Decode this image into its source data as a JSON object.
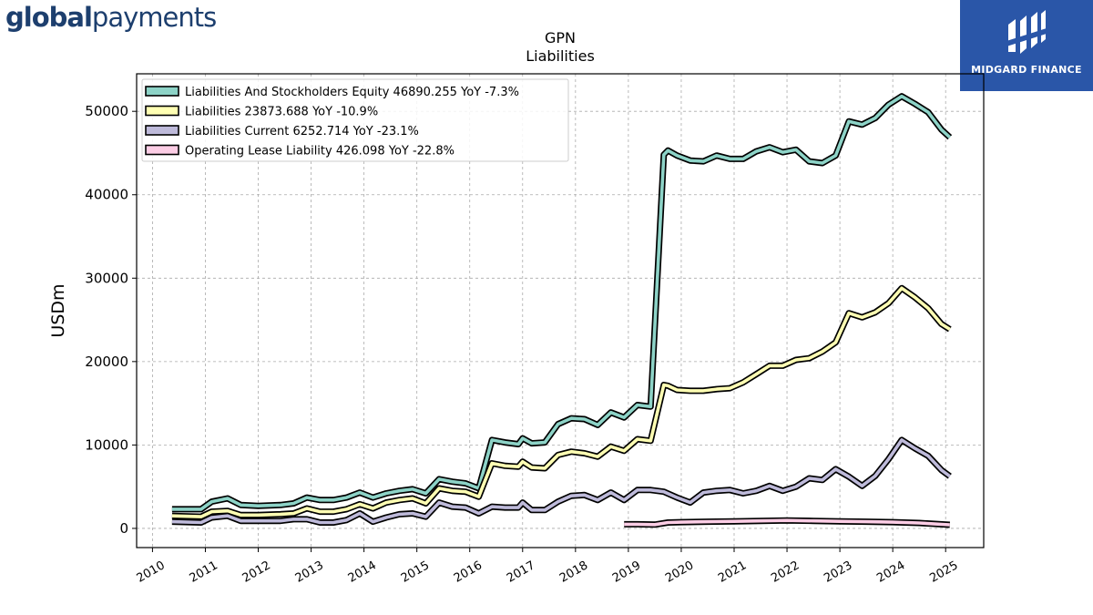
{
  "branding": {
    "logo_bold": "global",
    "logo_light": "payments",
    "watermark_text": "MIDGARD FINANCE"
  },
  "chart_data": {
    "type": "line",
    "title": "GPN",
    "subtitle": "Liabilities",
    "xlabel": "",
    "ylabel": "USDm",
    "xlim": [
      2009.7,
      2025.72
    ],
    "ylim": [
      -2300,
      54500
    ],
    "yticks": [
      0,
      10000,
      20000,
      30000,
      40000,
      50000
    ],
    "xticks": [
      "2010",
      "2011",
      "2012",
      "2013",
      "2014",
      "2015",
      "2016",
      "2017",
      "2018",
      "2019",
      "2020",
      "2021",
      "2022",
      "2023",
      "2024",
      "2025"
    ],
    "grid": true,
    "legend_position": "top-left",
    "series": [
      {
        "name": "Liabilities And Stockholders Equity",
        "legend": "Liabilities And Stockholders Equity  46890.255 YoY -7.3%",
        "color": "#8dd3c7",
        "x": [
          2010.37,
          2010.92,
          2011.12,
          2011.42,
          2011.67,
          2012.0,
          2012.42,
          2012.67,
          2012.92,
          2013.17,
          2013.42,
          2013.67,
          2013.92,
          2014.17,
          2014.42,
          2014.67,
          2014.92,
          2015.17,
          2015.42,
          2015.67,
          2015.92,
          2016.17,
          2016.42,
          2016.67,
          2016.92,
          2017.0,
          2017.17,
          2017.42,
          2017.67,
          2017.92,
          2018.17,
          2018.42,
          2018.67,
          2018.92,
          2019.17,
          2019.42,
          2019.67,
          2019.75,
          2019.92,
          2020.17,
          2020.42,
          2020.67,
          2020.92,
          2021.17,
          2021.42,
          2021.67,
          2021.92,
          2022.17,
          2022.42,
          2022.67,
          2022.92,
          2023.17,
          2023.42,
          2023.67,
          2023.92,
          2024.17,
          2024.42,
          2024.67,
          2024.92,
          2025.08
        ],
        "y": [
          2300,
          2300,
          3200,
          3600,
          2800,
          2700,
          2800,
          3000,
          3700,
          3400,
          3400,
          3700,
          4300,
          3700,
          4200,
          4500,
          4700,
          4200,
          5900,
          5600,
          5400,
          4800,
          10600,
          10300,
          10100,
          10800,
          10200,
          10300,
          12500,
          13200,
          13100,
          12400,
          13900,
          13300,
          14800,
          14600,
          44800,
          45300,
          44700,
          44100,
          44000,
          44700,
          44300,
          44300,
          45200,
          45700,
          45100,
          45400,
          44000,
          43800,
          44700,
          48800,
          48400,
          49200,
          50800,
          51800,
          50900,
          49900,
          47800,
          46890
        ]
      },
      {
        "name": "Liabilities",
        "legend": "Liabilities  23873.688 YoY -10.9%",
        "color": "#ffffb3",
        "x": [
          2010.37,
          2010.92,
          2011.12,
          2011.42,
          2011.67,
          2012.0,
          2012.42,
          2012.67,
          2012.92,
          2013.17,
          2013.42,
          2013.67,
          2013.92,
          2014.17,
          2014.42,
          2014.67,
          2014.92,
          2015.17,
          2015.42,
          2015.67,
          2015.92,
          2016.17,
          2016.42,
          2016.67,
          2016.92,
          2017.0,
          2017.17,
          2017.42,
          2017.67,
          2017.92,
          2018.17,
          2018.42,
          2018.67,
          2018.92,
          2019.17,
          2019.42,
          2019.67,
          2019.75,
          2019.92,
          2020.17,
          2020.42,
          2020.67,
          2020.92,
          2021.17,
          2021.42,
          2021.67,
          2021.92,
          2022.17,
          2022.42,
          2022.67,
          2022.92,
          2023.17,
          2023.42,
          2023.67,
          2023.92,
          2024.17,
          2024.42,
          2024.67,
          2024.92,
          2025.08
        ],
        "y": [
          1500,
          1400,
          2000,
          2100,
          1600,
          1600,
          1700,
          1800,
          2400,
          2000,
          2000,
          2300,
          2900,
          2400,
          3100,
          3400,
          3600,
          3000,
          4800,
          4500,
          4400,
          3800,
          7800,
          7500,
          7400,
          8000,
          7300,
          7200,
          8800,
          9200,
          9000,
          8600,
          9800,
          9300,
          10700,
          10500,
          17200,
          17100,
          16600,
          16500,
          16500,
          16700,
          16800,
          17500,
          18500,
          19500,
          19500,
          20200,
          20400,
          21200,
          22300,
          25800,
          25300,
          25900,
          27000,
          28800,
          27700,
          26400,
          24500,
          23874
        ]
      },
      {
        "name": "Liabilities Current",
        "legend": "Liabilities Current  6252.714 YoY -23.1%",
        "color": "#bebada",
        "x": [
          2010.37,
          2010.92,
          2011.12,
          2011.42,
          2011.67,
          2012.0,
          2012.42,
          2012.67,
          2012.92,
          2013.17,
          2013.42,
          2013.67,
          2013.92,
          2014.17,
          2014.42,
          2014.67,
          2014.92,
          2015.17,
          2015.42,
          2015.67,
          2015.92,
          2016.17,
          2016.42,
          2016.67,
          2016.92,
          2017.0,
          2017.17,
          2017.42,
          2017.67,
          2017.92,
          2018.17,
          2018.42,
          2018.67,
          2018.92,
          2019.17,
          2019.42,
          2019.67,
          2019.92,
          2020.17,
          2020.42,
          2020.67,
          2020.92,
          2021.17,
          2021.42,
          2021.67,
          2021.92,
          2022.17,
          2022.42,
          2022.67,
          2022.92,
          2023.17,
          2023.42,
          2023.67,
          2023.92,
          2024.17,
          2024.42,
          2024.67,
          2024.92,
          2025.08
        ],
        "y": [
          800,
          700,
          1300,
          1500,
          900,
          900,
          900,
          1100,
          1100,
          700,
          700,
          1000,
          1800,
          800,
          1300,
          1700,
          1800,
          1400,
          3100,
          2600,
          2500,
          1800,
          2600,
          2500,
          2500,
          3100,
          2200,
          2200,
          3200,
          3900,
          4000,
          3400,
          4300,
          3400,
          4600,
          4600,
          4400,
          3700,
          3100,
          4300,
          4500,
          4600,
          4200,
          4500,
          5100,
          4500,
          5000,
          6000,
          5800,
          7100,
          6200,
          5100,
          6300,
          8300,
          10600,
          9600,
          8700,
          7000,
          6253
        ]
      },
      {
        "name": "Operating Lease Liability",
        "legend": "Operating Lease Liability  426.098 YoY -22.8%",
        "color": "#fccde5",
        "x": [
          2018.92,
          2019.17,
          2019.5,
          2019.75,
          2020.0,
          2020.5,
          2021.0,
          2021.5,
          2022.0,
          2022.5,
          2023.0,
          2023.5,
          2024.0,
          2024.5,
          2025.08
        ],
        "y": [
          500,
          500,
          450,
          700,
          750,
          800,
          850,
          900,
          950,
          900,
          850,
          800,
          750,
          650,
          426
        ]
      }
    ]
  }
}
